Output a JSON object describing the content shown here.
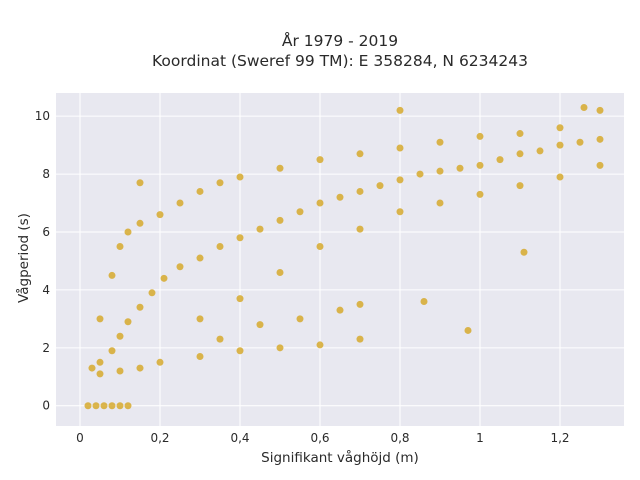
{
  "chart_data": {
    "type": "scatter",
    "title_line1": "År 1979 - 2019",
    "title_line2": "Koordinat (Sweref 99 TM): E 358284, N 6234243",
    "xlabel": "Signifikant våghöjd (m)",
    "ylabel": "Vågperiod (s)",
    "xlim": [
      -0.06,
      1.36
    ],
    "ylim": [
      -0.7,
      10.8
    ],
    "x_ticks": [
      0,
      0.2,
      0.4,
      0.6,
      0.8,
      1,
      1.2
    ],
    "x_tick_labels": [
      "0",
      "0,2",
      "0,4",
      "0,6",
      "0,8",
      "1",
      "1,2"
    ],
    "y_ticks": [
      0,
      2,
      4,
      6,
      8,
      10
    ],
    "y_tick_labels": [
      "0",
      "2",
      "4",
      "6",
      "8",
      "10"
    ],
    "grid": true,
    "colors": {
      "marker": "#d4a520",
      "plot_background": "#e8e8f0",
      "grid": "#ffffff"
    },
    "series": [
      {
        "marker_color": "#d4a520",
        "points": [
          [
            0.02,
            0
          ],
          [
            0.04,
            0
          ],
          [
            0.06,
            0
          ],
          [
            0.08,
            0
          ],
          [
            0.1,
            0
          ],
          [
            0.12,
            0
          ],
          [
            0.03,
            1.3
          ],
          [
            0.05,
            1.5
          ],
          [
            0.08,
            1.9
          ],
          [
            0.1,
            2.4
          ],
          [
            0.12,
            2.9
          ],
          [
            0.15,
            3.4
          ],
          [
            0.18,
            3.9
          ],
          [
            0.21,
            4.4
          ],
          [
            0.25,
            4.8
          ],
          [
            0.3,
            5.1
          ],
          [
            0.35,
            5.5
          ],
          [
            0.4,
            5.8
          ],
          [
            0.45,
            6.1
          ],
          [
            0.5,
            6.4
          ],
          [
            0.55,
            6.7
          ],
          [
            0.6,
            7.0
          ],
          [
            0.65,
            7.2
          ],
          [
            0.7,
            7.4
          ],
          [
            0.75,
            7.6
          ],
          [
            0.8,
            7.8
          ],
          [
            0.85,
            8.0
          ],
          [
            0.9,
            8.1
          ],
          [
            0.95,
            8.2
          ],
          [
            1.0,
            8.3
          ],
          [
            1.05,
            8.5
          ],
          [
            1.1,
            8.7
          ],
          [
            1.15,
            8.8
          ],
          [
            1.2,
            9.0
          ],
          [
            1.25,
            9.1
          ],
          [
            1.3,
            9.2
          ],
          [
            0.05,
            1.1
          ],
          [
            0.1,
            1.2
          ],
          [
            0.15,
            1.3
          ],
          [
            0.2,
            1.5
          ],
          [
            0.3,
            1.7
          ],
          [
            0.4,
            1.9
          ],
          [
            0.5,
            2.0
          ],
          [
            0.6,
            2.1
          ],
          [
            0.7,
            2.3
          ],
          [
            0.05,
            3.0
          ],
          [
            0.08,
            4.5
          ],
          [
            0.1,
            5.5
          ],
          [
            0.12,
            6.0
          ],
          [
            0.15,
            6.3
          ],
          [
            0.2,
            6.6
          ],
          [
            0.25,
            7.0
          ],
          [
            0.3,
            7.4
          ],
          [
            0.35,
            7.7
          ],
          [
            0.4,
            7.9
          ],
          [
            0.5,
            8.2
          ],
          [
            0.6,
            8.5
          ],
          [
            0.7,
            8.7
          ],
          [
            0.8,
            8.9
          ],
          [
            0.9,
            9.1
          ],
          [
            1.0,
            9.3
          ],
          [
            1.1,
            9.4
          ],
          [
            1.2,
            9.6
          ],
          [
            0.3,
            3.0
          ],
          [
            0.4,
            3.7
          ],
          [
            0.5,
            4.6
          ],
          [
            0.6,
            5.5
          ],
          [
            0.7,
            6.1
          ],
          [
            0.8,
            6.7
          ],
          [
            0.9,
            7.0
          ],
          [
            1.0,
            7.3
          ],
          [
            1.1,
            7.6
          ],
          [
            1.2,
            7.9
          ],
          [
            1.3,
            8.3
          ],
          [
            0.35,
            2.3
          ],
          [
            0.45,
            2.8
          ],
          [
            0.55,
            3.0
          ],
          [
            0.65,
            3.3
          ],
          [
            0.7,
            3.5
          ],
          [
            0.15,
            7.7
          ],
          [
            0.8,
            10.2
          ],
          [
            1.26,
            10.3
          ],
          [
            1.3,
            10.2
          ],
          [
            0.97,
            2.6
          ],
          [
            0.86,
            3.6
          ],
          [
            1.11,
            5.3
          ]
        ]
      }
    ]
  }
}
